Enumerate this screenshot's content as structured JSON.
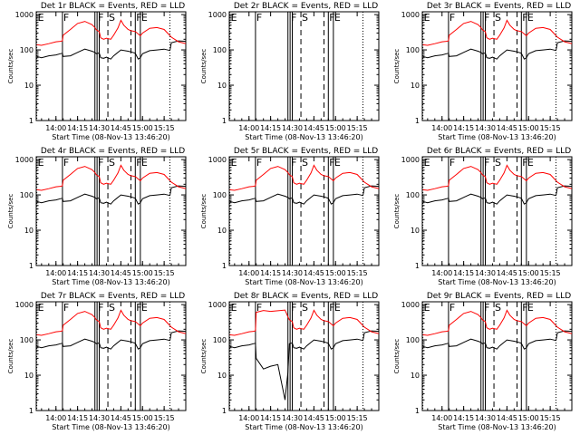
{
  "chart_data": {
    "type": "line",
    "panels": [
      {
        "title": "Det 1r  BLACK = Events, RED = LLD",
        "det": 1,
        "shape": "normal"
      },
      {
        "title": "Det 2r  BLACK = Events, RED = LLD",
        "det": 2,
        "shape": "empty"
      },
      {
        "title": "Det 3r  BLACK = Events, RED = LLD",
        "det": 3,
        "shape": "normal"
      },
      {
        "title": "Det 4r  BLACK = Events, RED = LLD",
        "det": 4,
        "shape": "normal"
      },
      {
        "title": "Det 5r  BLACK = Events, RED = LLD",
        "det": 5,
        "shape": "normal"
      },
      {
        "title": "Det 6r  BLACK = Events, RED = LLD",
        "det": 6,
        "shape": "normal"
      },
      {
        "title": "Det 7r  BLACK = Events, RED = LLD",
        "det": 7,
        "shape": "normal"
      },
      {
        "title": "Det 8r  BLACK = Events, RED = LLD",
        "det": 8,
        "shape": "spiky"
      },
      {
        "title": "Det 9r  BLACK = Events, RED = LLD",
        "det": 9,
        "shape": "normal"
      }
    ],
    "xlabel": "Start Time (08-Nov-13 13:46:20)",
    "ylabel": "Counts/sec",
    "x_ticks": [
      "14:00",
      "14:15",
      "14:30",
      "14:45",
      "15:00",
      "15:15"
    ],
    "x_tick_minutes": [
      0,
      15,
      30,
      45,
      60,
      75
    ],
    "x_range_minutes_after_1400": [
      -13.67,
      90
    ],
    "yscale": "log",
    "y_ticks": [
      "1",
      "10",
      "100",
      "1000"
    ],
    "y_tick_values": [
      1,
      10,
      100,
      1000
    ],
    "ylim": [
      1,
      1200
    ],
    "markers": [
      {
        "label": "E",
        "minute": -13.3,
        "style": "dotted"
      },
      {
        "label": "F",
        "minute": 4.5,
        "style": "solid"
      },
      {
        "label": "F",
        "minute": 28.5,
        "style": "solid"
      },
      {
        "label": "F",
        "minute": 55.0,
        "style": "solid"
      },
      {
        "label": "S",
        "minute": 36.0,
        "style": "dashed"
      },
      {
        "label": "E",
        "minute": 58.5,
        "style": "solid"
      },
      {
        "label": "",
        "minute": 27.0,
        "style": "solid"
      },
      {
        "label": "",
        "minute": 30.0,
        "style": "solid"
      },
      {
        "label": "",
        "minute": 52.0,
        "style": "dashed"
      },
      {
        "label": "",
        "minute": 79.0,
        "style": "dotted"
      }
    ],
    "series": [
      {
        "name": "Events",
        "color": "#000000",
        "x_minutes": [
          -13.3,
          -10,
          -5,
          0,
          3,
          4.5,
          5,
          10,
          15,
          20,
          25,
          27,
          28,
          30,
          31,
          33,
          35,
          38,
          40,
          45,
          50,
          52,
          55,
          57,
          58.5,
          60,
          65,
          70,
          75,
          79,
          80,
          85,
          90
        ],
        "values": [
          65,
          60,
          68,
          72,
          78,
          80,
          65,
          68,
          85,
          105,
          92,
          85,
          78,
          82,
          60,
          58,
          62,
          55,
          68,
          100,
          92,
          88,
          80,
          55,
          60,
          78,
          95,
          100,
          105,
          96,
          160,
          180,
          175
        ],
        "values_det8": [
          65,
          60,
          68,
          72,
          78,
          80,
          30,
          15,
          18,
          20,
          2,
          12,
          78,
          82,
          60,
          58,
          62,
          55,
          68,
          100,
          92,
          88,
          80,
          55,
          60,
          78,
          95,
          100,
          105,
          96,
          160,
          180,
          175
        ]
      },
      {
        "name": "LLD",
        "color": "#ff0000",
        "x_minutes": [
          -13.3,
          -10,
          -5,
          0,
          3,
          4.5,
          5,
          10,
          15,
          20,
          25,
          27,
          28,
          30,
          31,
          33,
          35,
          38,
          40,
          43,
          45,
          47,
          50,
          52,
          55,
          58.5,
          60,
          65,
          70,
          75,
          80,
          85,
          90
        ],
        "values": [
          140,
          135,
          150,
          170,
          175,
          180,
          260,
          380,
          560,
          640,
          520,
          430,
          370,
          330,
          220,
          200,
          215,
          200,
          260,
          420,
          690,
          500,
          380,
          350,
          330,
          250,
          300,
          410,
          430,
          380,
          230,
          170,
          150
        ],
        "values_det8": [
          140,
          135,
          150,
          170,
          175,
          180,
          600,
          680,
          640,
          670,
          700,
          450,
          370,
          330,
          220,
          200,
          215,
          200,
          260,
          420,
          690,
          500,
          380,
          350,
          330,
          250,
          300,
          410,
          430,
          380,
          230,
          170,
          150
        ]
      }
    ],
    "grid": false,
    "legend": "none"
  }
}
